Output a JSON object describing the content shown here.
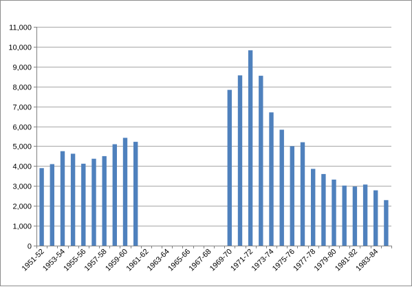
{
  "chart_data": {
    "type": "bar",
    "title": "",
    "xlabel": "",
    "ylabel": "",
    "ylim": [
      0,
      11000
    ],
    "ytick_step": 1000,
    "grid": true,
    "legend": "none",
    "bar_color": "#4f81bd",
    "grid_color": "#a6a6a6",
    "categories": [
      "1951-52",
      "1952-53",
      "1953-54",
      "1954-55",
      "1955-56",
      "1956-57",
      "1957-58",
      "1958-59",
      "1959-60",
      "1960-61",
      "1961-62",
      "1962-63",
      "1963-64",
      "1964-65",
      "1965-66",
      "1966-67",
      "1967-68",
      "1968-69",
      "1969-70",
      "1970-71",
      "1971-72",
      "1972-73",
      "1973-74",
      "1974-75",
      "1975-76",
      "1976-77",
      "1977-78",
      "1978-79",
      "1979-80",
      "1980-81",
      "1981-82",
      "1982-83",
      "1983-84",
      "1984-85"
    ],
    "x_tick_labels": [
      "1951-52",
      "1953-54",
      "1955-56",
      "1957-58",
      "1959-60",
      "1961-62",
      "1963-64",
      "1965-66",
      "1967-68",
      "1969-70",
      "1971-72",
      "1973-74",
      "1975-76",
      "1977-78",
      "1979-80",
      "1981-82",
      "1983-84"
    ],
    "y_tick_labels": [
      "0",
      "1,000",
      "2,000",
      "3,000",
      "4,000",
      "5,000",
      "6,000",
      "7,000",
      "8,000",
      "9,000",
      "10,000",
      "11,000"
    ],
    "values": [
      3900,
      4100,
      4750,
      4620,
      4120,
      4370,
      4500,
      5100,
      5420,
      5220,
      null,
      null,
      null,
      null,
      null,
      null,
      null,
      null,
      7830,
      8560,
      9820,
      8540,
      6700,
      5830,
      5000,
      5200,
      3860,
      3600,
      3320,
      3020,
      2970,
      3070,
      2780,
      2290
    ]
  }
}
